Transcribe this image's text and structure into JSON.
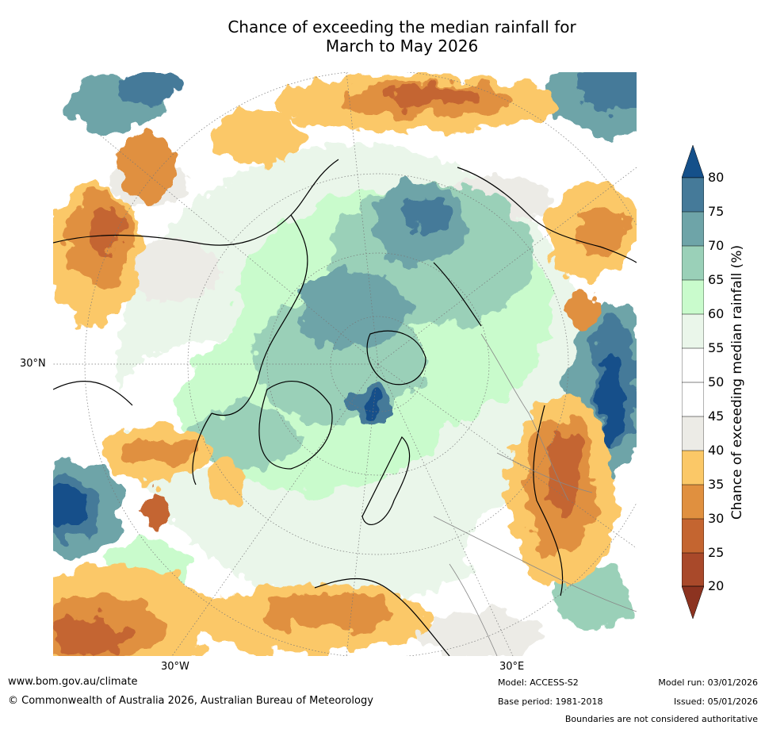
{
  "title": {
    "line1": "Chance of exceeding the median rainfall for",
    "line2": "March to May 2026"
  },
  "map": {
    "projection": "north-polar-stereographic",
    "lat_labels": [
      "30°N"
    ],
    "lon_labels": [
      "30°W",
      "30°E"
    ]
  },
  "colorbar": {
    "label": "Chance of exceeding median rainfall (%)",
    "ticks": [
      "80",
      "75",
      "70",
      "65",
      "60",
      "55",
      "50",
      "45",
      "40",
      "35",
      "30",
      "25",
      "20"
    ],
    "colors": {
      "above_80": "#15508a",
      "75_80": "#457a99",
      "70_75": "#6ea4a8",
      "65_70": "#9ad0b8",
      "60_65": "#c9fbcc",
      "55_60": "#eaf6ea",
      "50_55": "#ffffff",
      "45_50": "#ffffff",
      "40_45": "#ecebe6",
      "35_40": "#fbc867",
      "30_35": "#e0903f",
      "25_30": "#c46530",
      "20_25": "#a9492a",
      "below_20": "#8c3320"
    }
  },
  "footer": {
    "url": "www.bom.gov.au/climate",
    "copyright": "© Commonwealth of Australia 2026, Australian Bureau of Meteorology",
    "model": "Model: ACCESS-S2",
    "base_period": "Base period: 1981-2018",
    "model_run": "Model run: 03/01/2026",
    "issued": "Issued: 05/01/2026",
    "disclaimer": "Boundaries are not considered authoritative"
  }
}
